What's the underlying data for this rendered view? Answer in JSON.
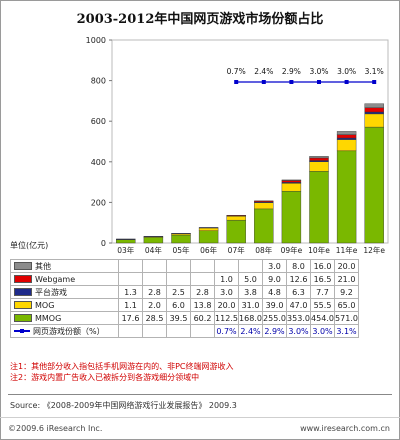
{
  "chart_data": {
    "type": "bar",
    "title": "2003-2012年中国网页游戏市场份额占比",
    "unit_label": "单位(亿元)",
    "categories": [
      "03年",
      "04年",
      "05年",
      "06年",
      "07年",
      "08年",
      "09年e",
      "10年e",
      "11年e",
      "12年e"
    ],
    "ylim": [
      0,
      1000
    ],
    "yticks": [
      "0",
      "200",
      "400",
      "600",
      "800",
      "1000"
    ],
    "series": [
      {
        "name": "MMOG",
        "color": "#7ab800",
        "values": [
          17.6,
          28.5,
          39.5,
          60.2,
          112.5,
          168.0,
          255.0,
          353.0,
          454.0,
          571.0
        ],
        "labels": [
          "17.6",
          "28.5",
          "39.5",
          "60.2",
          "112.5",
          "168.0",
          "255.0",
          "353.0",
          "454.0",
          "571.0"
        ]
      },
      {
        "name": "MOG",
        "color": "#ffd700",
        "values": [
          1.1,
          2.0,
          6.0,
          13.8,
          20.0,
          31.0,
          39.0,
          47.0,
          55.5,
          65.0
        ],
        "labels": [
          "1.1",
          "2.0",
          "6.0",
          "13.8",
          "20.0",
          "31.0",
          "39.0",
          "47.0",
          "55.5",
          "65.0"
        ]
      },
      {
        "name": "平台游戏",
        "color": "#1e2a8a",
        "values": [
          1.3,
          2.8,
          2.5,
          2.8,
          3.0,
          3.8,
          4.8,
          6.3,
          7.7,
          9.2
        ],
        "labels": [
          "1.3",
          "2.8",
          "2.5",
          "2.8",
          "3.0",
          "3.8",
          "4.8",
          "6.3",
          "7.7",
          "9.2"
        ]
      },
      {
        "name": "Webgame",
        "color": "#e00000",
        "values": [
          null,
          null,
          null,
          null,
          1.0,
          5.0,
          9.0,
          12.6,
          16.5,
          21.0
        ],
        "labels": [
          "",
          "",
          "",
          "",
          "1.0",
          "5.0",
          "9.0",
          "12.6",
          "16.5",
          "21.0"
        ]
      },
      {
        "name": "其他",
        "color": "#8c8c8c",
        "values": [
          null,
          null,
          null,
          null,
          null,
          null,
          3.0,
          8.0,
          16.0,
          20.0
        ],
        "labels": [
          "",
          "",
          "",
          "",
          "",
          "",
          "3.0",
          "8.0",
          "16.0",
          "20.0"
        ]
      }
    ],
    "line_series": {
      "name": "网页游戏份额（%）",
      "color": "#0000cc",
      "values": [
        null,
        null,
        null,
        null,
        0.7,
        2.4,
        2.9,
        3.0,
        3.0,
        3.1
      ],
      "labels": [
        "",
        "",
        "",
        "",
        "0.7%",
        "2.4%",
        "2.9%",
        "3.0%",
        "3.0%",
        "3.1%"
      ]
    },
    "table_order": [
      4,
      3,
      2,
      1,
      0
    ]
  },
  "notes": [
    "注1：其他部分收入指包括手机网游在内的、非PC终端网游收入",
    "注2：游戏内置广告收入已被拆分到各游戏细分领域中"
  ],
  "source": "Source: 《2008-2009年中国网络游戏行业发展报告》 2009.3",
  "copyright": "©2009.6 iResearch Inc.",
  "website": "www.iresearch.com.cn"
}
